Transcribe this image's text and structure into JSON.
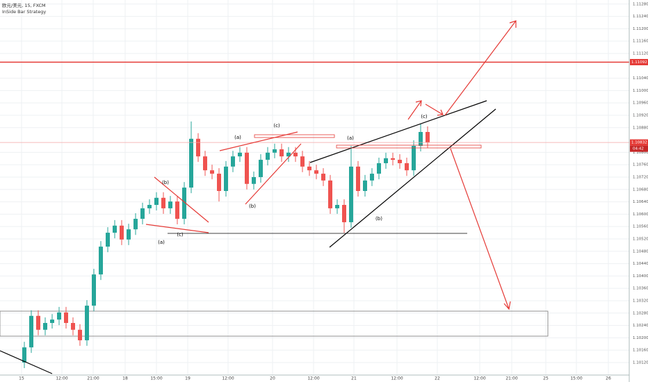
{
  "chart_data": {
    "type": "candlestick",
    "title": "欧元/美元, 15, FXCM",
    "subtitle": "InSide Bar Strategy",
    "up_color": "#26a69a",
    "down_color": "#ef5350",
    "grid": true,
    "xlim": [
      -0.5,
      90
    ],
    "ylim": [
      1.10057,
      1.11293
    ],
    "x": [
      3,
      4,
      5,
      6,
      7,
      8,
      9,
      10,
      11,
      12,
      13,
      14,
      15,
      16,
      17,
      18,
      19,
      20,
      21,
      22,
      23,
      24,
      25,
      26,
      27,
      28,
      29,
      30,
      31,
      32,
      33,
      34,
      35,
      36,
      37,
      38,
      39,
      40,
      41,
      42,
      43,
      44,
      45,
      46,
      47,
      48,
      49,
      50,
      51,
      52,
      53,
      54,
      55,
      56,
      57,
      58,
      59,
      60,
      61
    ],
    "open": [
      1.1012,
      1.10169,
      1.10271,
      1.10226,
      1.10248,
      1.10259,
      1.10282,
      1.10248,
      1.10226,
      1.10192,
      1.10304,
      1.10405,
      1.10495,
      1.1054,
      1.10563,
      1.10518,
      1.10551,
      1.10585,
      1.10619,
      1.1063,
      1.10653,
      1.10619,
      1.10641,
      1.10585,
      1.10686,
      1.10844,
      1.10787,
      1.10742,
      1.10731,
      1.10675,
      1.10754,
      1.10787,
      1.10799,
      1.10698,
      1.1072,
      1.10776,
      1.10799,
      1.1081,
      1.10787,
      1.10799,
      1.10787,
      1.10754,
      1.10742,
      1.10731,
      1.10709,
      1.10619,
      1.1063,
      1.10574,
      1.10754,
      1.10675,
      1.10709,
      1.10731,
      1.10765,
      1.10781,
      1.10776,
      1.10765,
      1.10742,
      1.10821,
      1.10866
    ],
    "high": [
      1.10187,
      1.10289,
      1.10289,
      1.10266,
      1.10277,
      1.103,
      1.103,
      1.10266,
      1.10244,
      1.10322,
      1.10423,
      1.10513,
      1.10558,
      1.10581,
      1.10581,
      1.10569,
      1.10603,
      1.10637,
      1.10648,
      1.10671,
      1.10671,
      1.10659,
      1.10659,
      1.10704,
      1.109,
      1.10862,
      1.10805,
      1.1076,
      1.10749,
      1.10772,
      1.10805,
      1.10817,
      1.10817,
      1.10738,
      1.10794,
      1.10817,
      1.10828,
      1.10828,
      1.10817,
      1.10817,
      1.10805,
      1.10772,
      1.1076,
      1.10749,
      1.10727,
      1.10648,
      1.10648,
      1.10821,
      1.10772,
      1.10727,
      1.10749,
      1.10783,
      1.10799,
      1.10799,
      1.10794,
      1.10783,
      1.10839,
      1.10893,
      1.10884
    ],
    "low": [
      1.10102,
      1.10151,
      1.10208,
      1.10208,
      1.1023,
      1.10241,
      1.1023,
      1.10208,
      1.10174,
      1.10174,
      1.10286,
      1.10387,
      1.10477,
      1.10522,
      1.105,
      1.105,
      1.10533,
      1.10567,
      1.10601,
      1.10612,
      1.10601,
      1.10601,
      1.10567,
      1.10567,
      1.10668,
      1.10769,
      1.10724,
      1.10713,
      1.10641,
      1.10657,
      1.10736,
      1.10769,
      1.1068,
      1.1068,
      1.10702,
      1.10758,
      1.10781,
      1.10769,
      1.10769,
      1.10769,
      1.10736,
      1.10724,
      1.10713,
      1.10691,
      1.10601,
      1.10601,
      1.1054,
      1.10556,
      1.10657,
      1.10657,
      1.10691,
      1.10713,
      1.10747,
      1.10758,
      1.10747,
      1.10724,
      1.10724,
      1.10803,
      1.10814
    ],
    "close": [
      1.10169,
      1.10271,
      1.10226,
      1.10248,
      1.10259,
      1.10282,
      1.10248,
      1.10226,
      1.10192,
      1.10304,
      1.10405,
      1.10495,
      1.1054,
      1.10563,
      1.10518,
      1.10551,
      1.10585,
      1.10619,
      1.1063,
      1.10653,
      1.10619,
      1.10641,
      1.10585,
      1.10686,
      1.10844,
      1.10787,
      1.10742,
      1.10731,
      1.10675,
      1.10754,
      1.10787,
      1.10799,
      1.10698,
      1.1072,
      1.10776,
      1.10799,
      1.1081,
      1.10787,
      1.10799,
      1.10787,
      1.10754,
      1.10742,
      1.10731,
      1.10709,
      1.10619,
      1.1063,
      1.10574,
      1.10754,
      1.10675,
      1.10709,
      1.10731,
      1.10765,
      1.10781,
      1.10776,
      1.10765,
      1.10742,
      1.10821,
      1.10866,
      1.10832
    ],
    "yticks": [
      {
        "value": 1.1012,
        "label": "1.10120"
      },
      {
        "value": 1.1016,
        "label": "1.10160"
      },
      {
        "value": 1.102,
        "label": "1.10200"
      },
      {
        "value": 1.1024,
        "label": "1.10240"
      },
      {
        "value": 1.1028,
        "label": "1.10280"
      },
      {
        "value": 1.1032,
        "label": "1.10320"
      },
      {
        "value": 1.1036,
        "label": "1.10360"
      },
      {
        "value": 1.104,
        "label": "1.10400"
      },
      {
        "value": 1.1044,
        "label": "1.10440"
      },
      {
        "value": 1.1048,
        "label": "1.10480"
      },
      {
        "value": 1.1052,
        "label": "1.10520"
      },
      {
        "value": 1.1056,
        "label": "1.10560"
      },
      {
        "value": 1.106,
        "label": "1.10600"
      },
      {
        "value": 1.1064,
        "label": "1.10640"
      },
      {
        "value": 1.1068,
        "label": "1.10680"
      },
      {
        "value": 1.1072,
        "label": "1.10720"
      },
      {
        "value": 1.1076,
        "label": "1.10760"
      },
      {
        "value": 1.108,
        "label": "1.10800"
      },
      {
        "value": 1.1088,
        "label": "1.10880"
      },
      {
        "value": 1.1092,
        "label": "1.10920"
      },
      {
        "value": 1.1096,
        "label": "1.10960"
      },
      {
        "value": 1.11,
        "label": "1.11000"
      },
      {
        "value": 1.1104,
        "label": "1.11040"
      },
      {
        "value": 1.1112,
        "label": "1.11120"
      },
      {
        "value": 1.1116,
        "label": "1.11160"
      },
      {
        "value": 1.112,
        "label": "1.11200"
      },
      {
        "value": 1.1124,
        "label": "1.11240"
      },
      {
        "value": 1.1128,
        "label": "1.11280"
      }
    ],
    "xticks": [
      {
        "value": 2.6,
        "label": "15"
      },
      {
        "value": 8.4,
        "label": "12:00"
      },
      {
        "value": 12.9,
        "label": "21:00"
      },
      {
        "value": 17.5,
        "label": "18"
      },
      {
        "value": 22,
        "label": "15:00"
      },
      {
        "value": 26.5,
        "label": "19"
      },
      {
        "value": 32.3,
        "label": "12:00"
      },
      {
        "value": 38.7,
        "label": "20"
      },
      {
        "value": 44.6,
        "label": "12:00"
      },
      {
        "value": 50.4,
        "label": "21"
      },
      {
        "value": 56.6,
        "label": "12:00"
      },
      {
        "value": 62.4,
        "label": "22"
      },
      {
        "value": 68.5,
        "label": "12:00"
      },
      {
        "value": 73.1,
        "label": "21:00"
      },
      {
        "value": 78,
        "label": "25"
      },
      {
        "value": 82.4,
        "label": "15:00"
      },
      {
        "value": 87,
        "label": "26"
      }
    ],
    "hlines": [
      {
        "value": 1.11092,
        "label": "1.11092",
        "color": "#e53935"
      },
      {
        "value": 1.10832,
        "label": "1.10832",
        "color": "#f4a5a5"
      }
    ],
    "countdown": "04:42",
    "annotations": [
      "(a)",
      "(c)",
      "(b)",
      "(a)",
      "(b)",
      "(c)",
      "(a)",
      "(b)",
      "(c)"
    ]
  }
}
